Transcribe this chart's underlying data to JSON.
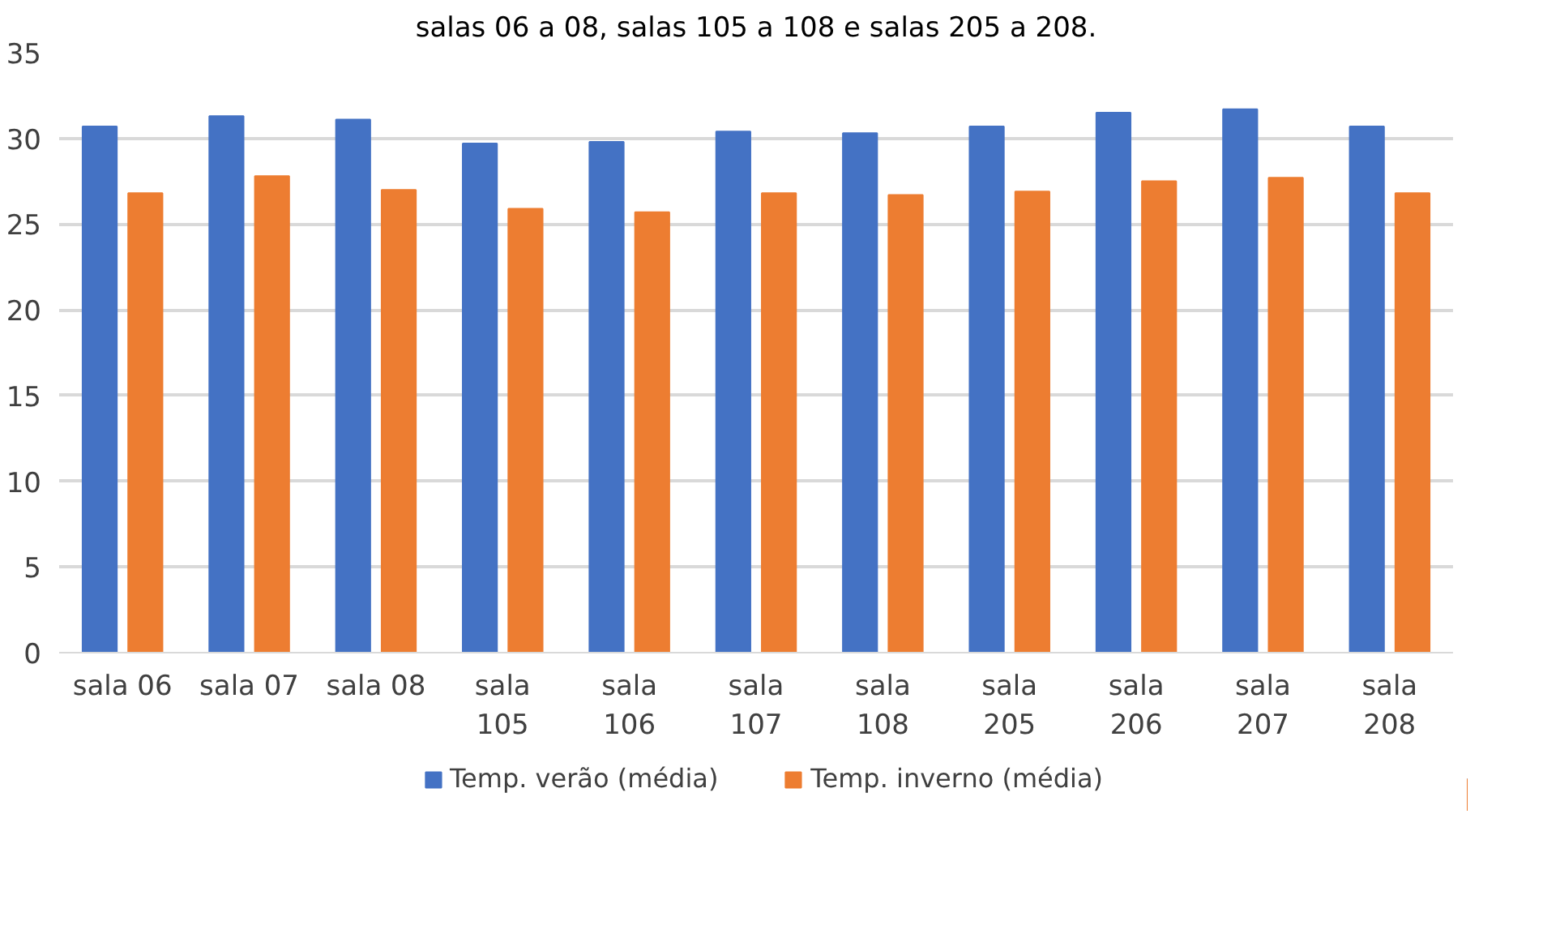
{
  "chart_data": {
    "type": "bar",
    "title": "salas 06 a 08, salas 105 a 108 e salas 205 a 208.",
    "categories": [
      "sala 06",
      "sala 07",
      "sala 08",
      "sala 105",
      "sala 106",
      "sala 107",
      "sala 108",
      "sala 205",
      "sala 206",
      "sala 207",
      "sala 208"
    ],
    "series": [
      {
        "name": "Temp. verão (média)",
        "color": "#4472c4",
        "values": [
          30.7,
          31.3,
          31.1,
          29.7,
          29.8,
          30.4,
          30.3,
          30.7,
          31.5,
          31.7,
          30.7
        ]
      },
      {
        "name": "Temp. inverno (média)",
        "color": "#ed7d31",
        "values": [
          26.8,
          27.8,
          27.0,
          25.9,
          25.7,
          26.8,
          26.7,
          26.9,
          27.5,
          27.7,
          26.8
        ]
      }
    ],
    "ylim": [
      0,
      35
    ],
    "yticks": [
      0,
      5,
      10,
      15,
      20,
      25,
      30,
      35
    ],
    "grid": "y",
    "legend": "bottom"
  }
}
